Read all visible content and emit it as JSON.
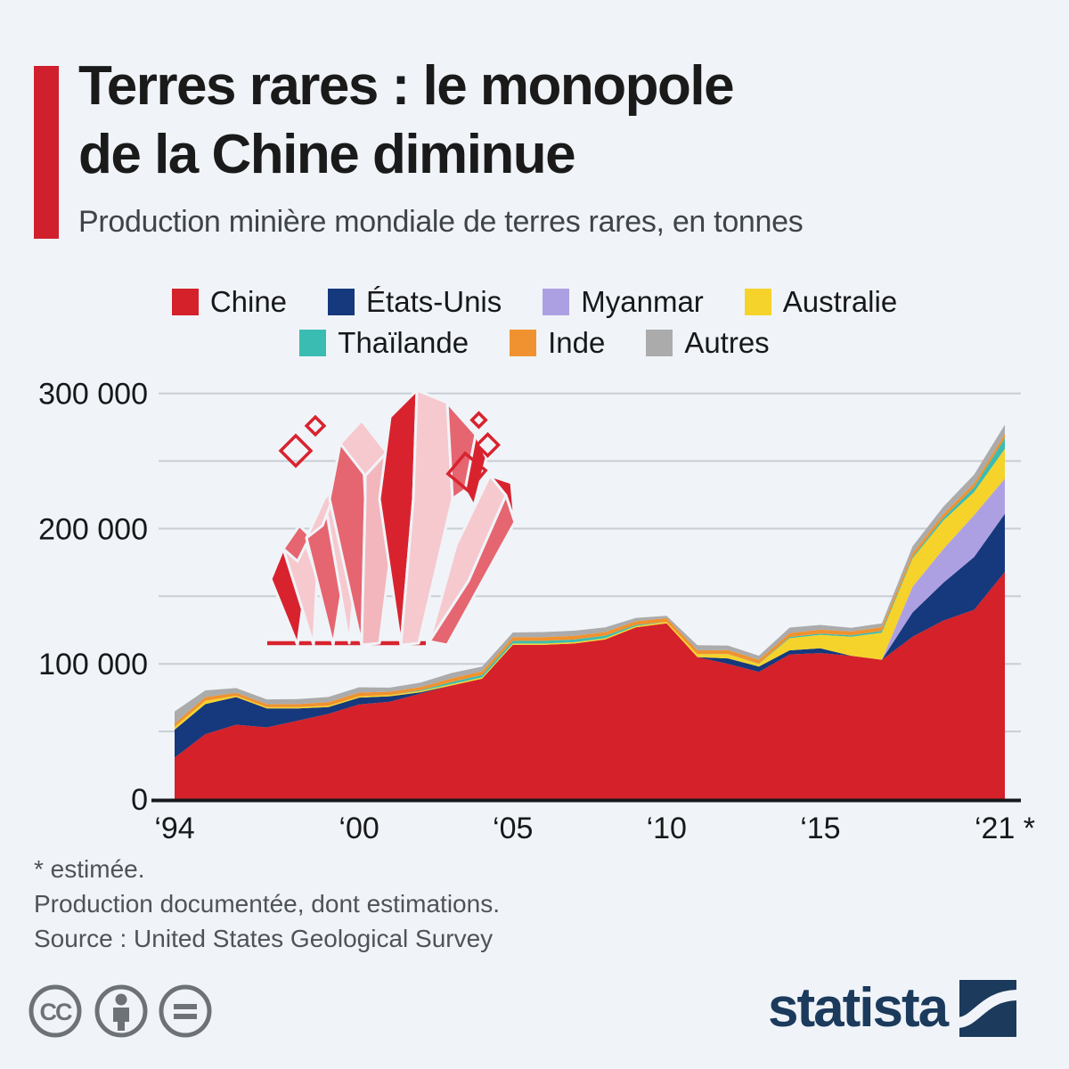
{
  "header": {
    "title_line1": "Terres rares : le monopole",
    "title_line2": "de la Chine diminue",
    "subtitle": "Production minière mondiale de terres rares, en tonnes",
    "accent_color": "#d0202e",
    "background_color": "#f0f4f8"
  },
  "legend": [
    {
      "label": "Chine",
      "color": "#d4212a"
    },
    {
      "label": "États-Unis",
      "color": "#16387c"
    },
    {
      "label": "Myanmar",
      "color": "#ada0e2"
    },
    {
      "label": "Australie",
      "color": "#f5d32b"
    },
    {
      "label": "Thaïlande",
      "color": "#3bbcb2"
    },
    {
      "label": "Inde",
      "color": "#f0922f"
    },
    {
      "label": "Autres",
      "color": "#ababab"
    }
  ],
  "chart_data": {
    "type": "area",
    "stacked": true,
    "unit": "tonnes",
    "x": [
      1994,
      1995,
      1996,
      1997,
      1998,
      1999,
      2000,
      2001,
      2002,
      2003,
      2004,
      2005,
      2006,
      2007,
      2008,
      2009,
      2010,
      2011,
      2012,
      2013,
      2014,
      2015,
      2016,
      2017,
      2018,
      2019,
      2020,
      2021
    ],
    "series": [
      {
        "name": "Chine",
        "color": "#d4212a",
        "values": [
          30600,
          48000,
          55000,
          53000,
          58000,
          63000,
          70000,
          72000,
          78000,
          84000,
          89000,
          114000,
          114000,
          115000,
          118000,
          127000,
          130000,
          105000,
          100000,
          94000,
          107000,
          108000,
          106000,
          103000,
          120000,
          132000,
          140000,
          168000
        ]
      },
      {
        "name": "États-Unis",
        "color": "#16387c",
        "values": [
          20700,
          22200,
          20400,
          14000,
          9000,
          5000,
          5000,
          4000,
          1000,
          0,
          0,
          0,
          0,
          0,
          0,
          0,
          0,
          0,
          4000,
          4000,
          3000,
          3500,
          0,
          0,
          18000,
          28000,
          39000,
          43000
        ]
      },
      {
        "name": "Myanmar",
        "color": "#ada0e2",
        "values": [
          0,
          0,
          0,
          0,
          0,
          0,
          0,
          0,
          0,
          0,
          0,
          0,
          0,
          0,
          0,
          0,
          0,
          0,
          0,
          0,
          0,
          0,
          0,
          0,
          19000,
          25000,
          31000,
          26000
        ]
      },
      {
        "name": "Australie",
        "color": "#f5d32b",
        "values": [
          2000,
          2500,
          1000,
          1000,
          1000,
          1000,
          1000,
          1000,
          1000,
          1000,
          1000,
          1000,
          1000,
          1000,
          1000,
          1000,
          1000,
          2200,
          3200,
          2000,
          9000,
          10000,
          14000,
          20000,
          21000,
          21000,
          17000,
          22000
        ]
      },
      {
        "name": "Thaïlande",
        "color": "#3bbcb2",
        "values": [
          0,
          0,
          0,
          0,
          0,
          0,
          0,
          0,
          500,
          1500,
          1800,
          2000,
          2000,
          2000,
          1800,
          800,
          0,
          0,
          100,
          100,
          800,
          800,
          1000,
          1300,
          1000,
          1900,
          3600,
          8000
        ]
      },
      {
        "name": "Inde",
        "color": "#f0922f",
        "values": [
          2500,
          2700,
          2200,
          2200,
          2200,
          2700,
          2700,
          2400,
          2400,
          2700,
          2700,
          2700,
          2700,
          2700,
          2700,
          2700,
          2800,
          2800,
          2900,
          2900,
          3000,
          3000,
          2900,
          2900,
          2900,
          2900,
          2900,
          2900
        ]
      },
      {
        "name": "Autres",
        "color": "#ababab",
        "values": [
          9000,
          5000,
          3500,
          3500,
          3800,
          3800,
          4000,
          3000,
          3200,
          4000,
          3500,
          3500,
          3800,
          3800,
          3500,
          2500,
          1700,
          3800,
          3300,
          3000,
          4000,
          3500,
          2700,
          2700,
          5000,
          5500,
          6500,
          7000
        ]
      }
    ],
    "ylim": [
      0,
      300000
    ],
    "gridlines": [
      50000,
      100000,
      150000,
      200000,
      250000,
      300000
    ],
    "yticks": [
      {
        "v": 0,
        "label": "0"
      },
      {
        "v": 100000,
        "label": "100 000"
      },
      {
        "v": 200000,
        "label": "200 000"
      },
      {
        "v": 300000,
        "label": "300 000"
      }
    ],
    "xticks": [
      {
        "v": 1994,
        "label": "‘94"
      },
      {
        "v": 2000,
        "label": "‘00"
      },
      {
        "v": 2005,
        "label": "‘05"
      },
      {
        "v": 2010,
        "label": "‘10"
      },
      {
        "v": 2015,
        "label": "‘15"
      },
      {
        "v": 2021,
        "label": "‘21 *"
      }
    ],
    "legend_position": "top",
    "grid": "horizontal"
  },
  "footnotes": {
    "estimate": "* estimée.",
    "note": "Production documentée, dont estimations.",
    "source": "Source : United States Geological Survey"
  },
  "branding": {
    "logo_text": "statista",
    "logo_color": "#1b3a5c",
    "license_icons": [
      "cc-icon",
      "cc-by-icon",
      "cc-nd-icon"
    ]
  }
}
